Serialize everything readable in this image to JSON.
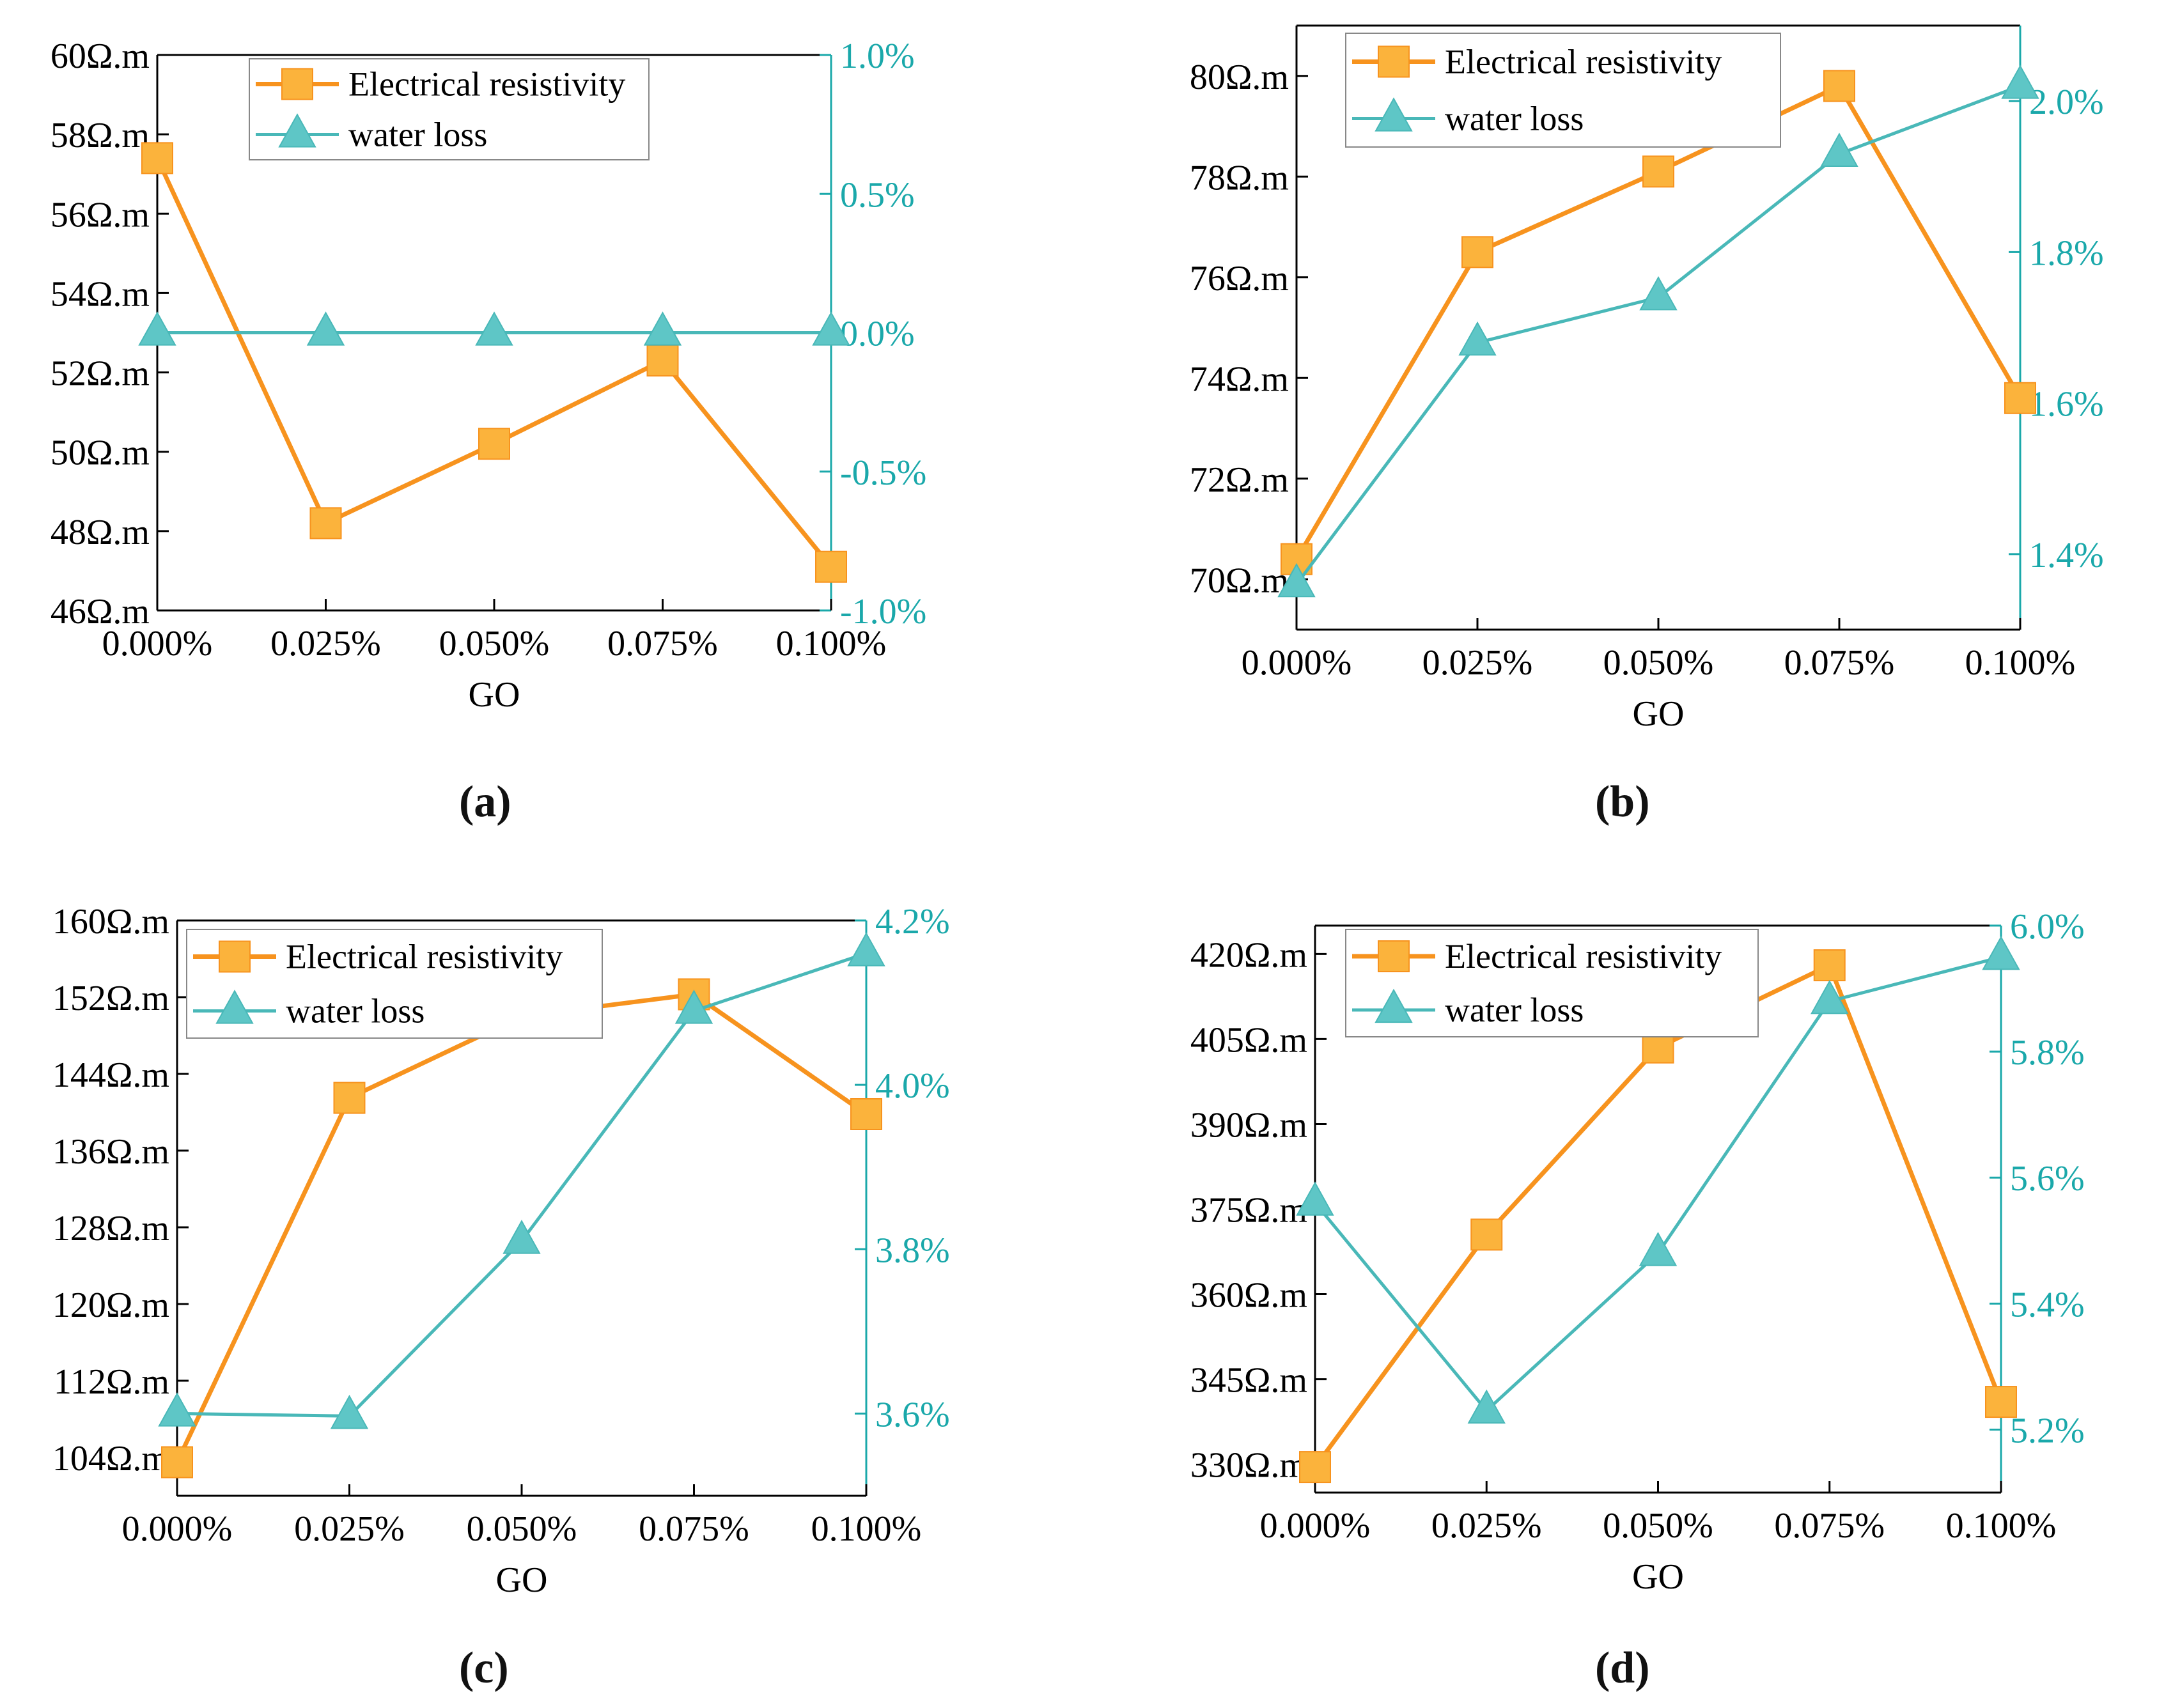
{
  "colors": {
    "resistivity": "#f7931e",
    "resistivity_marker": "#fbb33c",
    "water_loss": "#49b8b8",
    "water_loss_marker": "#5ec6c6",
    "axis_left": "#000000",
    "axis_right": "#1aa8aa"
  },
  "panel_labels": [
    "(a)",
    "(b)",
    "(c)",
    "(d)"
  ],
  "chart_data": [
    {
      "id": "a",
      "type": "line",
      "xlabel": "GO",
      "categories": [
        "0.000%",
        "0.025%",
        "0.050%",
        "0.075%",
        "0.100%"
      ],
      "left_axis": {
        "ylim": [
          46,
          60
        ],
        "ticks": [
          46,
          48,
          50,
          52,
          54,
          56,
          58,
          60
        ],
        "suffix": "Ω.m"
      },
      "right_axis": {
        "ylim": [
          -1.0,
          1.0
        ],
        "ticks": [
          -1.0,
          -0.5,
          0.0,
          0.5,
          1.0
        ],
        "suffix": "%"
      },
      "legend_position": "top",
      "series": [
        {
          "name": "Electrical resistivity",
          "axis": "left",
          "marker": "square",
          "values": [
            57.4,
            48.2,
            50.2,
            52.3,
            47.1
          ]
        },
        {
          "name": "water loss",
          "axis": "right",
          "marker": "triangle",
          "values": [
            0.0,
            0.0,
            0.0,
            0.0,
            0.0
          ]
        }
      ]
    },
    {
      "id": "b",
      "type": "line",
      "xlabel": "GO",
      "categories": [
        "0.000%",
        "0.025%",
        "0.050%",
        "0.075%",
        "0.100%"
      ],
      "left_axis": {
        "ylim": [
          69,
          81
        ],
        "ticks": [
          70,
          72,
          74,
          76,
          78,
          80
        ],
        "suffix": "Ω.m"
      },
      "right_axis": {
        "ylim": [
          1.3,
          2.1
        ],
        "ticks": [
          1.4,
          1.6,
          1.8,
          2.0
        ],
        "suffix": "%"
      },
      "legend_position": "top-left",
      "series": [
        {
          "name": "Electrical resistivity",
          "axis": "left",
          "marker": "square",
          "values": [
            70.4,
            76.5,
            78.1,
            79.8,
            73.6
          ]
        },
        {
          "name": "water loss",
          "axis": "right",
          "marker": "triangle",
          "values": [
            1.36,
            1.68,
            1.74,
            1.93,
            2.02
          ]
        }
      ]
    },
    {
      "id": "c",
      "type": "line",
      "xlabel": "GO",
      "categories": [
        "0.000%",
        "0.025%",
        "0.050%",
        "0.075%",
        "0.100%"
      ],
      "left_axis": {
        "ylim": [
          100,
          160
        ],
        "ticks": [
          104,
          112,
          120,
          128,
          136,
          144,
          152,
          160
        ],
        "suffix": "Ω.m"
      },
      "right_axis": {
        "ylim": [
          3.5,
          4.2
        ],
        "ticks": [
          3.6,
          3.8,
          4.0,
          4.2
        ],
        "suffix": "%"
      },
      "legend_position": "top-left",
      "series": [
        {
          "name": "Electrical resistivity",
          "axis": "left",
          "marker": "square",
          "values": [
            103.5,
            141.5,
            150.0,
            152.3,
            139.8
          ]
        },
        {
          "name": "water loss",
          "axis": "right",
          "marker": "triangle",
          "values": [
            3.6,
            3.597,
            3.81,
            4.09,
            4.16
          ]
        }
      ]
    },
    {
      "id": "d",
      "type": "line",
      "xlabel": "GO",
      "categories": [
        "0.000%",
        "0.025%",
        "0.050%",
        "0.075%",
        "0.100%"
      ],
      "left_axis": {
        "ylim": [
          325,
          425
        ],
        "ticks": [
          330,
          345,
          360,
          375,
          390,
          405,
          420
        ],
        "suffix": "Ω.m"
      },
      "right_axis": {
        "ylim": [
          5.1,
          6.0
        ],
        "ticks": [
          5.2,
          5.4,
          5.6,
          5.8,
          6.0
        ],
        "suffix": "%"
      },
      "legend_position": "top-left",
      "series": [
        {
          "name": "Electrical resistivity",
          "axis": "left",
          "marker": "square",
          "values": [
            329.5,
            370.5,
            403.5,
            418.0,
            341.0
          ]
        },
        {
          "name": "water loss",
          "axis": "right",
          "marker": "triangle",
          "values": [
            5.56,
            5.23,
            5.48,
            5.88,
            5.95
          ]
        }
      ]
    }
  ]
}
